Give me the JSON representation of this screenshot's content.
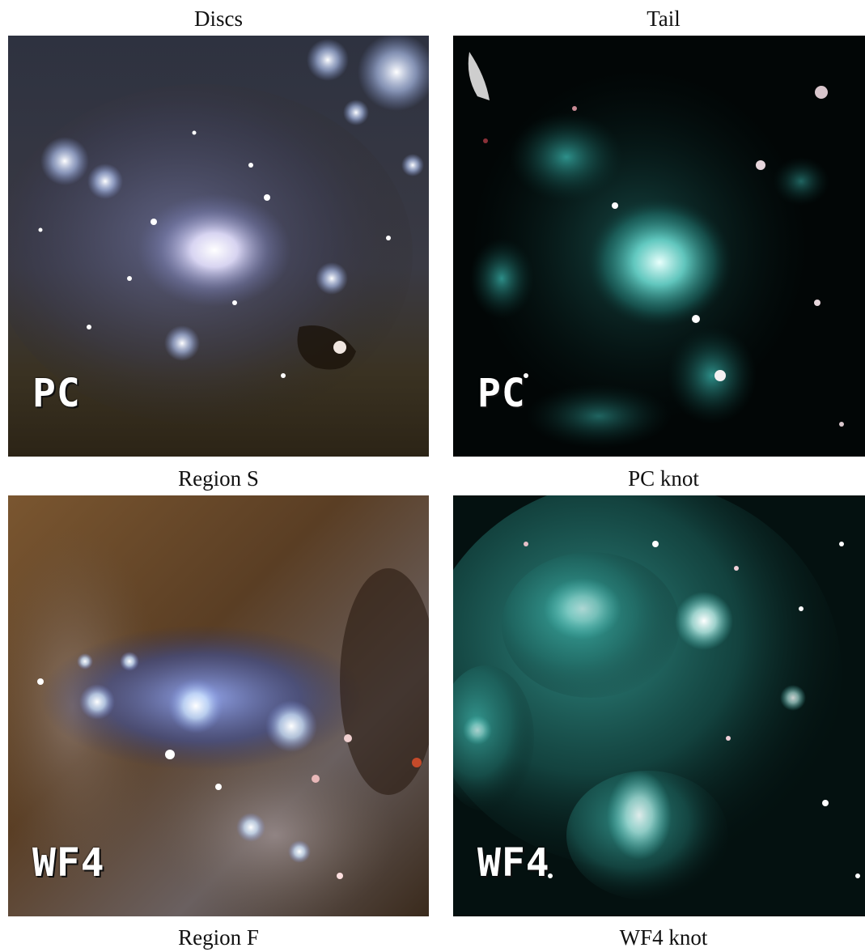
{
  "panels": [
    {
      "id": "discs",
      "title": "Discs",
      "subtitle": "Region S",
      "chip": "PC"
    },
    {
      "id": "tail",
      "title": "Tail",
      "subtitle": "PC knot",
      "chip": "PC"
    },
    {
      "id": "region-f",
      "title": "",
      "subtitle": "Region F",
      "chip": "WF4"
    },
    {
      "id": "wf4-knot",
      "title": "",
      "subtitle": "WF4 knot",
      "chip": "WF4"
    }
  ],
  "colors": {
    "discs_bg": "#2a241a",
    "tail_bg": "#020606",
    "tail_glow": "#3fc7bf",
    "regionf_bg": "#6a4a2a",
    "regionf_glow": "#7a8fe0",
    "knot_bg": "#041110",
    "knot_glow": "#55d5cc"
  }
}
